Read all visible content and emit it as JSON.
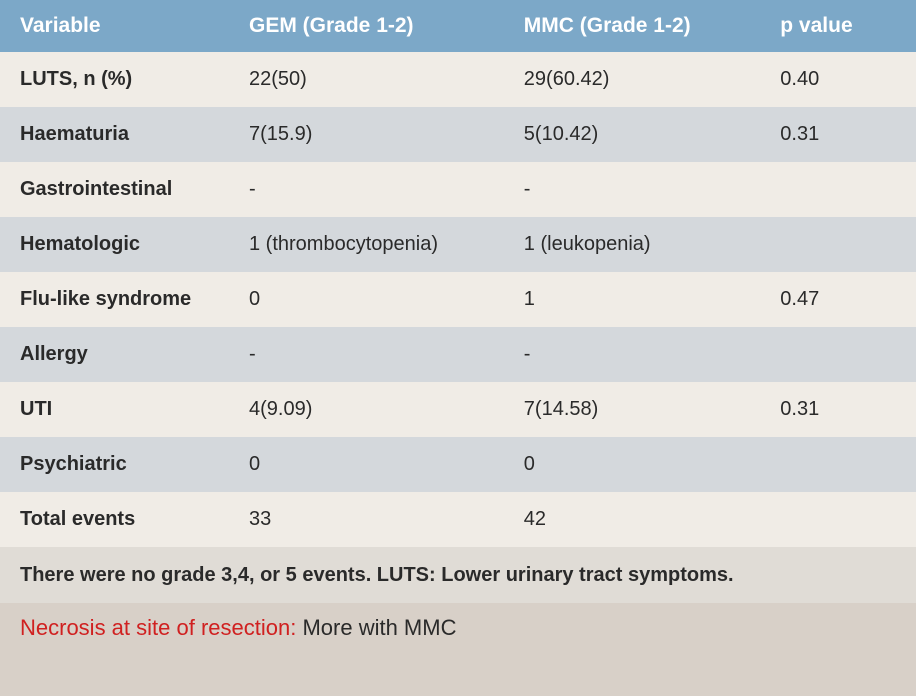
{
  "table": {
    "header_bg_color": "#7ca8c8",
    "header_text_color": "#ffffff",
    "row_odd_bg": "#f0ece6",
    "row_even_bg": "#d4d8dc",
    "columns": [
      "Variable",
      "GEM (Grade 1-2)",
      "MMC (Grade 1-2)",
      "p value"
    ],
    "rows": [
      {
        "variable": "LUTS, n (%)",
        "gem": "22(50)",
        "mmc": "29(60.42)",
        "pvalue": "0.40"
      },
      {
        "variable": "Haematuria",
        "gem": "7(15.9)",
        "mmc": "5(10.42)",
        "pvalue": "0.31"
      },
      {
        "variable": "Gastrointestinal",
        "gem": "-",
        "mmc": "-",
        "pvalue": ""
      },
      {
        "variable": "Hematologic",
        "gem": "1 (thrombocytopenia)",
        "mmc": "1 (leukopenia)",
        "pvalue": ""
      },
      {
        "variable": "Flu-like syndrome",
        "gem": "0",
        "mmc": "1",
        "pvalue": "0.47"
      },
      {
        "variable": "Allergy",
        "gem": "-",
        "mmc": "-",
        "pvalue": ""
      },
      {
        "variable": "UTI",
        "gem": "4(9.09)",
        "mmc": "7(14.58)",
        "pvalue": "0.31"
      },
      {
        "variable": "Psychiatric",
        "gem": "0",
        "mmc": "0",
        "pvalue": ""
      },
      {
        "variable": "Total events",
        "gem": "33",
        "mmc": "42",
        "pvalue": ""
      }
    ],
    "footer_note": "There were no grade 3,4, or 5 events. LUTS: Lower urinary tract symptoms."
  },
  "annotation": {
    "red_text": "Necrosis at site of resection: ",
    "black_text": "More with MMC",
    "red_color": "#d02020",
    "black_color": "#2a2a2a"
  }
}
